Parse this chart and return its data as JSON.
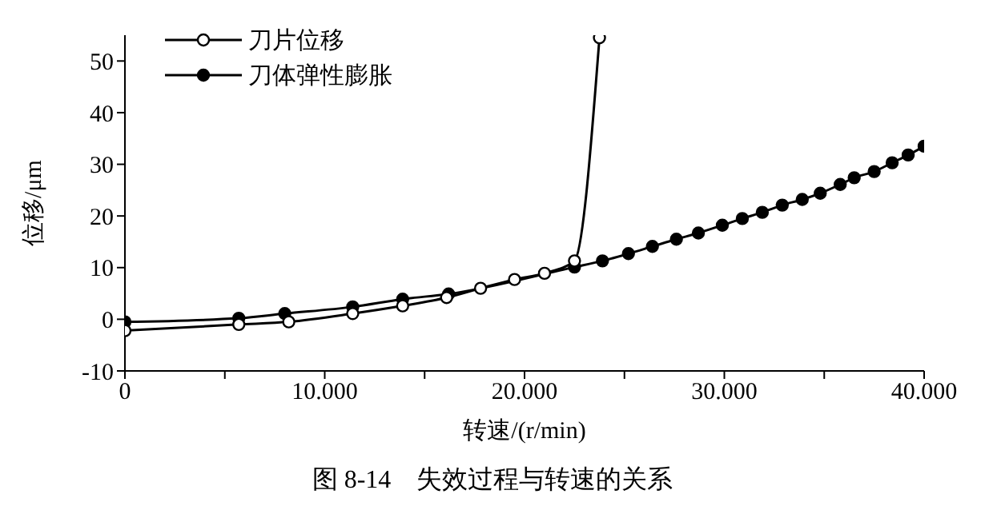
{
  "chart_data": {
    "type": "line",
    "title": "图 8-14　失效过程与转速的关系",
    "xlabel": "转速/(r/min)",
    "ylabel": "位移/μm",
    "xlim": [
      0,
      40000
    ],
    "xticks": [
      {
        "value": 0,
        "label": "0"
      },
      {
        "value": 5000,
        "label": null
      },
      {
        "value": 10000,
        "label": "10.000"
      },
      {
        "value": 15000,
        "label": null
      },
      {
        "value": 20000,
        "label": "20.000"
      },
      {
        "value": 25000,
        "label": null
      },
      {
        "value": 30000,
        "label": "30.000"
      },
      {
        "value": 35000,
        "label": null
      },
      {
        "value": 40000,
        "label": "40.000"
      }
    ],
    "ylim": [
      -10,
      55
    ],
    "yticks": [
      -10,
      0,
      10,
      20,
      30,
      40,
      50
    ],
    "grid": false,
    "legend": "top left",
    "marker": "circle",
    "line_style": "solid",
    "series": [
      {
        "name": "刀片位移",
        "color": "#000000",
        "x": [
          0,
          5700,
          8200,
          11400,
          13900,
          16100,
          17800,
          19500,
          21000,
          22500,
          23750
        ],
        "values": [
          -2.2,
          -1,
          -0.5,
          1.1,
          2.6,
          4.2,
          6,
          7.7,
          8.9,
          11.3,
          54.5
        ]
      },
      {
        "name": "刀体弹性膨胀",
        "color": "#000000",
        "x": [
          0,
          5700,
          8000,
          11400,
          13900,
          16200,
          22500,
          23900,
          25200,
          26400,
          27600,
          28700,
          29900,
          30900,
          31900,
          32900,
          33900,
          34800,
          35800,
          36500,
          37500,
          38400,
          39200,
          40000
        ],
        "values": [
          -0.5,
          0.2,
          1.1,
          2.4,
          3.9,
          4.9,
          10.1,
          11.3,
          12.7,
          14.1,
          15.5,
          16.7,
          18.2,
          19.5,
          20.7,
          22.1,
          23.2,
          24.4,
          26.1,
          27.4,
          28.6,
          30.3,
          31.8,
          33.5
        ]
      }
    ]
  }
}
